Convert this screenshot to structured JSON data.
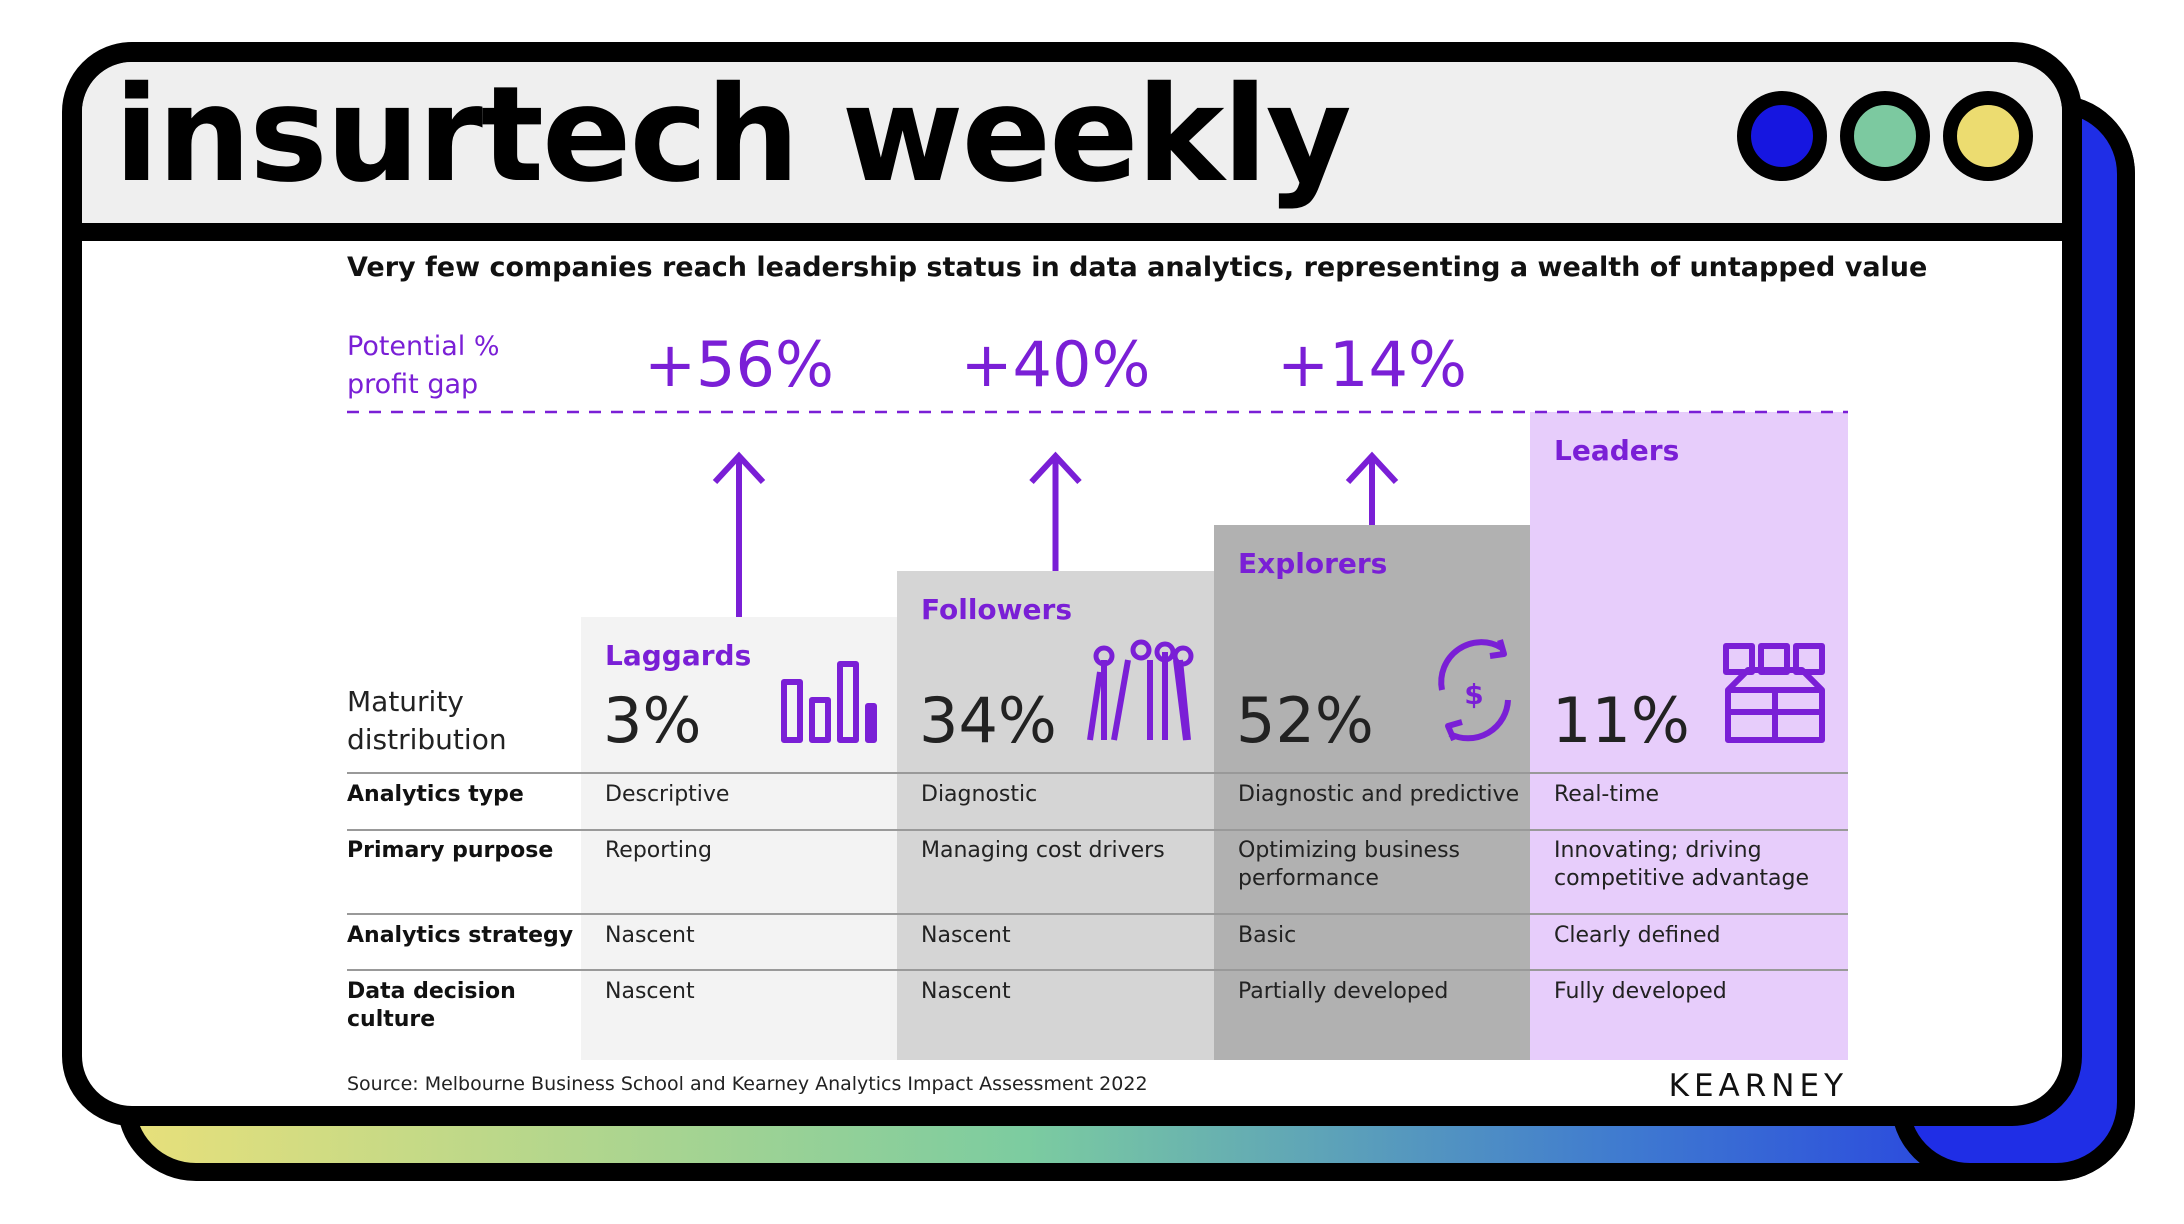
{
  "header": {
    "title": "insurtech weekly"
  },
  "subtitle": "Very few companies reach leadership status in data analytics, representing a wealth of untapped value",
  "gap_label": [
    "Potential %",
    "profit gap"
  ],
  "distribution_label": [
    "Maturity",
    "distribution"
  ],
  "row_labels": [
    [
      "Analytics type"
    ],
    [
      "Primary purpose"
    ],
    [
      "Analytics strategy"
    ],
    [
      "Data decision",
      "culture"
    ]
  ],
  "segments": [
    {
      "name": "Laggards",
      "share": "3%",
      "gap": "+56%",
      "cells": [
        [
          "Descriptive"
        ],
        [
          "Reporting"
        ],
        [
          "Nascent"
        ],
        [
          "Nascent"
        ]
      ]
    },
    {
      "name": "Followers",
      "share": "34%",
      "gap": "+40%",
      "cells": [
        [
          "Diagnostic"
        ],
        [
          "Managing cost drivers"
        ],
        [
          "Nascent"
        ],
        [
          "Nascent"
        ]
      ]
    },
    {
      "name": "Explorers",
      "share": "52%",
      "gap": "+14%",
      "cells": [
        [
          "Diagnostic and predictive"
        ],
        [
          "Optimizing business",
          "performance"
        ],
        [
          "Basic"
        ],
        [
          "Partially developed"
        ]
      ]
    },
    {
      "name": "Leaders",
      "share": "11%",
      "cells": [
        [
          "Real-time"
        ],
        [
          "Innovating; driving",
          "competitive advantage"
        ],
        [
          "Clearly defined"
        ],
        [
          "Fully developed"
        ]
      ]
    }
  ],
  "source": "Source: Melbourne Business School and Kearney Analytics Impact Assessment 2022",
  "logo": "KEARNEY"
}
